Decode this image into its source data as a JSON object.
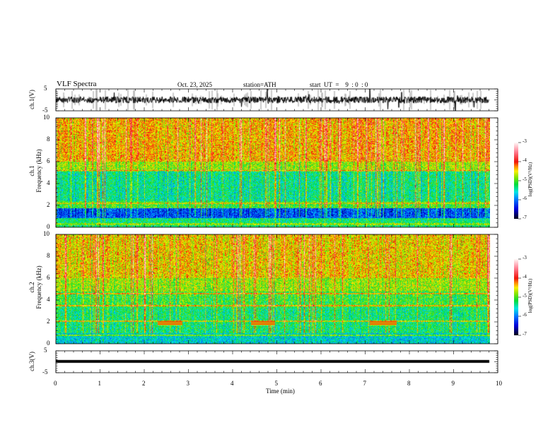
{
  "header": {
    "title": "VLF  Spectra",
    "date": "Oct. 23, 2025",
    "station": "station=ATH",
    "start": "start  UT  =    9  : 0  : 0"
  },
  "chart_data": [
    {
      "type": "line",
      "name": "ch1-waveform",
      "ylabel": "ch.1(V)",
      "ylim": [
        -5,
        5
      ],
      "yticks": [
        "5",
        "-5"
      ]
    },
    {
      "type": "heatmap",
      "name": "ch1-spectrogram",
      "ylabel": "ch.1\nFrequency  (kHz)",
      "ylabel_lines": [
        "ch.1",
        "Frequency  (kHz)"
      ],
      "ylim": [
        0,
        10
      ],
      "yticks": [
        "0",
        "2",
        "4",
        "6",
        "8",
        "10"
      ],
      "colorbar": {
        "label": "log(PSD)(V²/Hz)",
        "range": [
          -7,
          -3
        ],
        "ticks": [
          "-3",
          "-4",
          "-5",
          "-6",
          "-7"
        ]
      }
    },
    {
      "type": "heatmap",
      "name": "ch2-spectrogram",
      "ylabel_lines": [
        "ch.2",
        "Frequency  (kHz)"
      ],
      "ylim": [
        0,
        10
      ],
      "yticks": [
        "0",
        "2",
        "4",
        "6",
        "8",
        "10"
      ],
      "colorbar": {
        "label": "log(PSD)(V²/Hz)",
        "range": [
          -7,
          -3
        ],
        "ticks": [
          "-3",
          "-4",
          "-5",
          "-6",
          "-7"
        ]
      }
    },
    {
      "type": "line",
      "name": "ch3-waveform",
      "ylabel": "ch.3(V)",
      "ylim": [
        -5,
        5
      ],
      "yticks": [
        "5",
        "-5"
      ]
    }
  ],
  "xaxis": {
    "label": "Time  (min)",
    "xlim": [
      0,
      10
    ],
    "ticks": [
      "0",
      "1",
      "2",
      "3",
      "4",
      "5",
      "6",
      "7",
      "8",
      "9",
      "10"
    ],
    "data_end": 9.8
  }
}
